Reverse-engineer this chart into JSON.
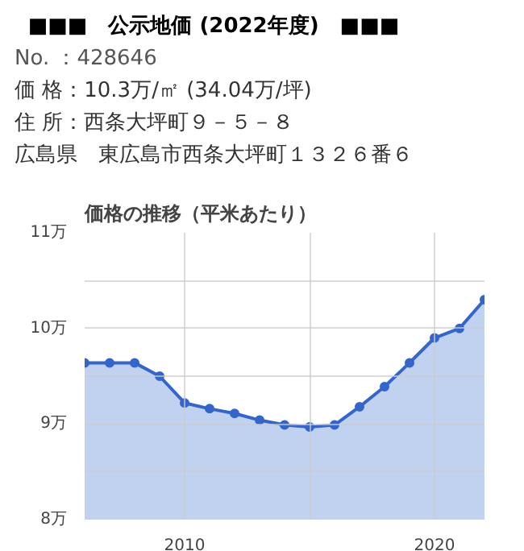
{
  "chart_data": {
    "type": "area",
    "title": "価格の推移（平米あたり）",
    "annotations": [
      "■■■　公示地価 (2022年度)　■■■",
      "No. ：428646",
      "価 格：10.3万/㎡ (34.04万/坪)",
      "住 所：西条大坪町９－５－８",
      "広島県　東広島市西条大坪町１３２６番６"
    ],
    "x": [
      2006,
      2007,
      2008,
      2009,
      2010,
      2011,
      2012,
      2013,
      2014,
      2015,
      2016,
      2017,
      2018,
      2019,
      2020,
      2021,
      2022
    ],
    "series": [
      {
        "color": "#3366cc",
        "values": [
          9.64,
          9.64,
          9.64,
          9.5,
          9.22,
          9.16,
          9.11,
          9.04,
          8.99,
          8.97,
          8.99,
          9.18,
          9.39,
          9.64,
          9.9,
          10.0,
          10.3
        ]
      }
    ],
    "xlim": [
      2006,
      2022
    ],
    "xticks": [
      2010,
      {
        "value": 2015,
        "label": null
      },
      2020
    ],
    "ylim": [
      8,
      11
    ],
    "yticks": [
      {
        "value": 8,
        "label": "8万"
      },
      {
        "value": 8.5,
        "label": null
      },
      {
        "value": 9,
        "label": "9万"
      },
      {
        "value": 9.5,
        "label": null
      },
      {
        "value": 10,
        "label": "10万"
      },
      {
        "value": 10.5,
        "label": null
      },
      {
        "value": 11,
        "label": "11万"
      }
    ],
    "grid": true,
    "marker": "circle"
  }
}
